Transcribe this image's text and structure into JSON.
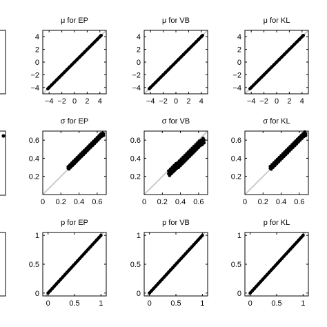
{
  "figure": {
    "background": "#ffffff",
    "axis_color": "#000000",
    "diagonal_color": "#cccccc",
    "point_color": "#000000"
  },
  "chart_data": [
    {
      "type": "scatter",
      "title": "μ for EP",
      "row": 0,
      "col": 0,
      "xlim": [
        -5,
        5
      ],
      "ylim": [
        -5,
        5
      ],
      "xticks": [
        -4,
        -2,
        0,
        2,
        4
      ],
      "xticklabels": [
        "−4",
        "−2",
        "0",
        "2",
        "4"
      ],
      "yticks": [
        -4,
        -2,
        0,
        2,
        4
      ],
      "yticklabels": [
        "−4",
        "−2",
        "0",
        "2",
        "4"
      ],
      "diagonal": true,
      "grid": false,
      "spread": 0,
      "x": [
        -4.2,
        -4.0,
        -3.6,
        -3.2,
        -2.8,
        -2.4,
        -2.0,
        -1.6,
        -1.2,
        -0.8,
        -0.4,
        0.0,
        0.4,
        0.8,
        1.2,
        1.6,
        2.0,
        2.4,
        2.8,
        3.2,
        3.6,
        4.0,
        4.2
      ],
      "y": [
        -4.2,
        -4.0,
        -3.6,
        -3.2,
        -2.8,
        -2.4,
        -2.0,
        -1.6,
        -1.2,
        -0.8,
        -0.4,
        0.0,
        0.4,
        0.8,
        1.2,
        1.6,
        2.0,
        2.4,
        2.8,
        3.2,
        3.6,
        4.0,
        4.2
      ]
    },
    {
      "type": "scatter",
      "title": "μ for VB",
      "row": 0,
      "col": 1,
      "xlim": [
        -5,
        5
      ],
      "ylim": [
        -5,
        5
      ],
      "xticks": [
        -4,
        -2,
        0,
        2,
        4
      ],
      "xticklabels": [
        "−4",
        "−2",
        "0",
        "2",
        "4"
      ],
      "yticks": [
        -4,
        -2,
        0,
        2,
        4
      ],
      "yticklabels": [
        "−4",
        "−2",
        "0",
        "2",
        "4"
      ],
      "diagonal": true,
      "grid": false,
      "spread": 0,
      "x": [
        -4.2,
        -4.0,
        -3.6,
        -3.2,
        -2.8,
        -2.4,
        -2.0,
        -1.6,
        -1.2,
        -0.8,
        -0.4,
        0.0,
        0.4,
        0.8,
        1.2,
        1.6,
        2.0,
        2.4,
        2.8,
        3.2,
        3.6,
        4.0,
        4.2
      ],
      "y": [
        -4.2,
        -4.0,
        -3.6,
        -3.2,
        -2.8,
        -2.4,
        -2.0,
        -1.6,
        -1.2,
        -0.8,
        -0.4,
        0.0,
        0.4,
        0.8,
        1.2,
        1.6,
        2.0,
        2.4,
        2.8,
        3.2,
        3.6,
        4.0,
        4.2
      ]
    },
    {
      "type": "scatter",
      "title": "μ for KL",
      "row": 0,
      "col": 2,
      "xlim": [
        -5,
        5
      ],
      "ylim": [
        -5,
        5
      ],
      "xticks": [
        -4,
        -2,
        0,
        2,
        4
      ],
      "xticklabels": [
        "−4",
        "−2",
        "0",
        "2",
        "4"
      ],
      "yticks": [
        -4,
        -2,
        0,
        2,
        4
      ],
      "yticklabels": [
        "−4",
        "−2",
        "0",
        "2",
        "4"
      ],
      "diagonal": true,
      "grid": false,
      "spread": 0,
      "x": [
        -4.2,
        -4.0,
        -3.6,
        -3.2,
        -2.8,
        -2.4,
        -2.0,
        -1.6,
        -1.2,
        -0.8,
        -0.4,
        0.0,
        0.4,
        0.8,
        1.2,
        1.6,
        2.0,
        2.4,
        2.8,
        3.2,
        3.6,
        4.0,
        4.2
      ],
      "y": [
        -4.2,
        -4.0,
        -3.6,
        -3.2,
        -2.8,
        -2.4,
        -2.0,
        -1.6,
        -1.2,
        -0.8,
        -0.4,
        0.0,
        0.4,
        0.8,
        1.2,
        1.6,
        2.0,
        2.4,
        2.8,
        3.2,
        3.6,
        4.0,
        4.2
      ]
    },
    {
      "type": "scatter",
      "title": "σ for EP",
      "row": 1,
      "col": 0,
      "xlim": [
        0,
        0.7
      ],
      "ylim": [
        0,
        0.7
      ],
      "xticks": [
        0,
        0.2,
        0.4,
        0.6
      ],
      "xticklabels": [
        "0",
        "0.2",
        "0.4",
        "0.6"
      ],
      "yticks": [
        0.2,
        0.4,
        0.6
      ],
      "yticklabels": [
        "0.2",
        "0.4",
        "0.6"
      ],
      "diagonal": true,
      "grid": false,
      "spread": 0.018,
      "x": [
        0.28,
        0.29,
        0.3,
        0.31,
        0.32,
        0.33,
        0.34,
        0.35,
        0.36,
        0.37,
        0.38,
        0.39,
        0.4,
        0.41,
        0.42,
        0.43,
        0.44,
        0.45,
        0.46,
        0.47,
        0.48,
        0.49,
        0.5,
        0.51,
        0.52,
        0.53,
        0.54,
        0.55,
        0.56,
        0.57,
        0.58,
        0.59,
        0.6,
        0.61,
        0.62,
        0.63,
        0.64,
        0.65,
        0.66,
        0.67
      ],
      "y": [
        0.29,
        0.3,
        0.31,
        0.32,
        0.33,
        0.34,
        0.35,
        0.36,
        0.37,
        0.38,
        0.39,
        0.4,
        0.41,
        0.42,
        0.43,
        0.44,
        0.45,
        0.46,
        0.47,
        0.48,
        0.49,
        0.5,
        0.51,
        0.52,
        0.53,
        0.54,
        0.55,
        0.56,
        0.57,
        0.58,
        0.59,
        0.6,
        0.61,
        0.62,
        0.63,
        0.64,
        0.65,
        0.66,
        0.66,
        0.67
      ]
    },
    {
      "type": "scatter",
      "title": "σ for VB",
      "row": 1,
      "col": 1,
      "xlim": [
        0,
        0.7
      ],
      "ylim": [
        0,
        0.7
      ],
      "xticks": [
        0,
        0.2,
        0.4,
        0.6
      ],
      "xticklabels": [
        "0",
        "0.2",
        "0.4",
        "0.6"
      ],
      "yticks": [
        0.2,
        0.4,
        0.6
      ],
      "yticklabels": [
        "0.2",
        "0.4",
        "0.6"
      ],
      "diagonal": true,
      "grid": false,
      "spread": 0.03,
      "x": [
        0.27,
        0.28,
        0.29,
        0.3,
        0.31,
        0.32,
        0.33,
        0.34,
        0.35,
        0.36,
        0.37,
        0.38,
        0.39,
        0.4,
        0.41,
        0.42,
        0.43,
        0.44,
        0.45,
        0.46,
        0.47,
        0.48,
        0.49,
        0.5,
        0.51,
        0.52,
        0.53,
        0.54,
        0.55,
        0.56,
        0.57,
        0.58,
        0.59,
        0.6,
        0.61,
        0.62,
        0.63,
        0.64,
        0.65,
        0.66
      ],
      "y": [
        0.23,
        0.24,
        0.25,
        0.26,
        0.27,
        0.28,
        0.29,
        0.3,
        0.31,
        0.32,
        0.32,
        0.33,
        0.34,
        0.35,
        0.36,
        0.37,
        0.38,
        0.39,
        0.4,
        0.41,
        0.42,
        0.43,
        0.44,
        0.45,
        0.46,
        0.47,
        0.48,
        0.49,
        0.5,
        0.51,
        0.52,
        0.53,
        0.54,
        0.55,
        0.56,
        0.57,
        0.57,
        0.58,
        0.59,
        0.6
      ]
    },
    {
      "type": "scatter",
      "title": "σ for KL",
      "row": 1,
      "col": 2,
      "xlim": [
        0,
        0.7
      ],
      "ylim": [
        0,
        0.7
      ],
      "xticks": [
        0,
        0.2,
        0.4,
        0.6
      ],
      "xticklabels": [
        "0",
        "0.2",
        "0.4",
        "0.6"
      ],
      "yticks": [
        0.2,
        0.4,
        0.6
      ],
      "yticklabels": [
        "0.2",
        "0.4",
        "0.6"
      ],
      "diagonal": true,
      "grid": false,
      "spread": 0.02,
      "x": [
        0.28,
        0.29,
        0.3,
        0.31,
        0.32,
        0.33,
        0.34,
        0.35,
        0.36,
        0.37,
        0.38,
        0.39,
        0.4,
        0.41,
        0.42,
        0.43,
        0.44,
        0.45,
        0.46,
        0.47,
        0.48,
        0.49,
        0.5,
        0.51,
        0.52,
        0.53,
        0.54,
        0.55,
        0.56,
        0.57,
        0.58,
        0.59,
        0.6,
        0.61,
        0.62,
        0.63,
        0.64,
        0.65,
        0.66,
        0.67
      ],
      "y": [
        0.29,
        0.3,
        0.31,
        0.32,
        0.33,
        0.34,
        0.35,
        0.36,
        0.37,
        0.38,
        0.39,
        0.4,
        0.41,
        0.42,
        0.43,
        0.44,
        0.45,
        0.46,
        0.47,
        0.48,
        0.49,
        0.5,
        0.51,
        0.52,
        0.53,
        0.54,
        0.55,
        0.56,
        0.57,
        0.58,
        0.59,
        0.6,
        0.61,
        0.62,
        0.63,
        0.64,
        0.65,
        0.66,
        0.67,
        0.67
      ]
    },
    {
      "type": "scatter",
      "title": "p for EP",
      "row": 2,
      "col": 0,
      "xlim": [
        -0.1,
        1.1
      ],
      "ylim": [
        -0.05,
        1.05
      ],
      "xticks": [
        0,
        0.5,
        1
      ],
      "xticklabels": [
        "0",
        "0.5",
        "1"
      ],
      "yticks": [
        0,
        0.5,
        1
      ],
      "yticklabels": [
        "0",
        "0.5",
        "1"
      ],
      "diagonal": true,
      "grid": false,
      "spread": 0,
      "x": [
        0.0,
        0.04,
        0.08,
        0.12,
        0.16,
        0.2,
        0.24,
        0.28,
        0.32,
        0.36,
        0.4,
        0.44,
        0.48,
        0.52,
        0.56,
        0.6,
        0.64,
        0.68,
        0.72,
        0.76,
        0.8,
        0.84,
        0.88,
        0.92,
        0.96,
        1.0
      ],
      "y": [
        0.0,
        0.04,
        0.08,
        0.12,
        0.16,
        0.2,
        0.24,
        0.28,
        0.32,
        0.36,
        0.4,
        0.44,
        0.48,
        0.52,
        0.56,
        0.6,
        0.64,
        0.68,
        0.72,
        0.76,
        0.8,
        0.84,
        0.88,
        0.92,
        0.96,
        1.0
      ]
    },
    {
      "type": "scatter",
      "title": "p for VB",
      "row": 2,
      "col": 1,
      "xlim": [
        -0.1,
        1.1
      ],
      "ylim": [
        -0.05,
        1.05
      ],
      "xticks": [
        0,
        0.5,
        1
      ],
      "xticklabels": [
        "0",
        "0.5",
        "1"
      ],
      "yticks": [
        0,
        0.5,
        1
      ],
      "yticklabels": [
        "0",
        "0.5",
        "1"
      ],
      "diagonal": true,
      "grid": false,
      "spread": 0,
      "x": [
        0.0,
        0.04,
        0.08,
        0.12,
        0.16,
        0.2,
        0.24,
        0.28,
        0.32,
        0.36,
        0.4,
        0.44,
        0.48,
        0.52,
        0.56,
        0.6,
        0.64,
        0.68,
        0.72,
        0.76,
        0.8,
        0.84,
        0.88,
        0.92,
        0.96,
        1.0
      ],
      "y": [
        0.0,
        0.04,
        0.08,
        0.12,
        0.16,
        0.2,
        0.24,
        0.28,
        0.32,
        0.36,
        0.4,
        0.44,
        0.48,
        0.52,
        0.56,
        0.6,
        0.64,
        0.68,
        0.72,
        0.76,
        0.8,
        0.84,
        0.88,
        0.92,
        0.96,
        1.0
      ]
    },
    {
      "type": "scatter",
      "title": "p for KL",
      "row": 2,
      "col": 2,
      "xlim": [
        -0.1,
        1.1
      ],
      "ylim": [
        -0.05,
        1.05
      ],
      "xticks": [
        0,
        0.5,
        1
      ],
      "xticklabels": [
        "0",
        "0.5",
        "1"
      ],
      "yticks": [
        0,
        0.5,
        1
      ],
      "yticklabels": [
        "0",
        "0.5",
        "1"
      ],
      "diagonal": true,
      "grid": false,
      "spread": 0,
      "x": [
        0.0,
        0.04,
        0.08,
        0.12,
        0.16,
        0.2,
        0.24,
        0.28,
        0.32,
        0.36,
        0.4,
        0.44,
        0.48,
        0.52,
        0.56,
        0.6,
        0.64,
        0.68,
        0.72,
        0.76,
        0.8,
        0.84,
        0.88,
        0.92,
        0.96,
        1.0
      ],
      "y": [
        0.0,
        0.04,
        0.08,
        0.12,
        0.16,
        0.2,
        0.24,
        0.28,
        0.32,
        0.36,
        0.4,
        0.44,
        0.48,
        0.52,
        0.56,
        0.6,
        0.64,
        0.68,
        0.72,
        0.76,
        0.8,
        0.84,
        0.88,
        0.92,
        0.96,
        1.0
      ]
    }
  ]
}
